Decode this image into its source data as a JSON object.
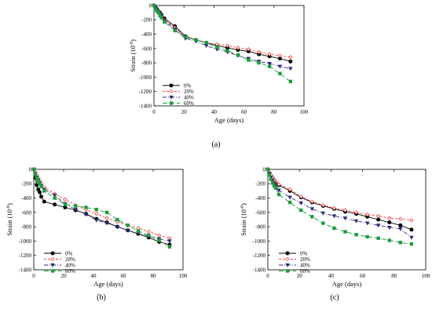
{
  "figure": {
    "panels": [
      "(a)",
      "(b)",
      "(c)"
    ]
  },
  "legend": [
    "0%",
    "20%",
    "40%",
    "60%"
  ],
  "styles": {
    "0%": {
      "color": "#000000",
      "marker": "circle",
      "filled": true,
      "dash": ""
    },
    "20%": {
      "color": "#e8433e",
      "marker": "diamond",
      "filled": false,
      "dash": "3,2"
    },
    "40%": {
      "color": "#2d2a7a",
      "marker": "triangle",
      "filled": true,
      "dash": "5,2,1,2"
    },
    "60%": {
      "color": "#1a9c3c",
      "marker": "square",
      "filled": true,
      "dash": "6,3"
    }
  },
  "chart_data": [
    {
      "panel": "(a)",
      "type": "line",
      "xlabel": "Age (days)",
      "ylabel_main": "Strain (10",
      "ylabel_sup": "-6",
      "ylabel_end": ")",
      "xlim": [
        0,
        100
      ],
      "ylim": [
        -1400,
        0
      ],
      "xticks": [
        0,
        20,
        40,
        60,
        80,
        100
      ],
      "yticks": [
        0,
        -200,
        -400,
        -600,
        -800,
        -1000,
        -1200,
        -1400
      ],
      "series": [
        {
          "name": "0%",
          "x": [
            0,
            1,
            2,
            3,
            4,
            5,
            7,
            14,
            21,
            28,
            35,
            42,
            49,
            56,
            63,
            70,
            77,
            84,
            91
          ],
          "y": [
            0,
            -30,
            -50,
            -80,
            -100,
            -130,
            -180,
            -290,
            -430,
            -480,
            -520,
            -560,
            -590,
            -620,
            -640,
            -680,
            -710,
            -740,
            -780
          ]
        },
        {
          "name": "20%",
          "x": [
            0,
            1,
            2,
            3,
            4,
            5,
            7,
            14,
            21,
            28,
            35,
            42,
            49,
            56,
            63,
            70,
            77,
            84,
            91
          ],
          "y": [
            0,
            -40,
            -60,
            -80,
            -110,
            -140,
            -200,
            -310,
            -440,
            -480,
            -520,
            -540,
            -560,
            -590,
            -610,
            -650,
            -680,
            -700,
            -720
          ]
        },
        {
          "name": "40%",
          "x": [
            0,
            1,
            2,
            3,
            4,
            5,
            7,
            14,
            21,
            28,
            35,
            42,
            49,
            56,
            63,
            70,
            77,
            84,
            91
          ],
          "y": [
            0,
            -40,
            -70,
            -90,
            -120,
            -150,
            -210,
            -330,
            -460,
            -500,
            -560,
            -610,
            -650,
            -700,
            -740,
            -780,
            -810,
            -850,
            -880
          ]
        },
        {
          "name": "60%",
          "x": [
            0,
            1,
            2,
            3,
            4,
            5,
            7,
            14,
            21,
            28,
            35,
            42,
            49,
            56,
            63,
            70,
            77,
            84,
            91
          ],
          "y": [
            0,
            -50,
            -80,
            -100,
            -140,
            -170,
            -230,
            -350,
            -440,
            -480,
            -520,
            -580,
            -630,
            -690,
            -760,
            -800,
            -850,
            -950,
            -1060
          ]
        }
      ]
    },
    {
      "panel": "(b)",
      "type": "line",
      "xlabel": "Age (days)",
      "ylabel_main": "Strain (10",
      "ylabel_sup": "-6",
      "ylabel_end": ")",
      "xlim": [
        0,
        100
      ],
      "ylim": [
        -1400,
        0
      ],
      "xticks": [
        0,
        20,
        40,
        60,
        80,
        100
      ],
      "yticks": [
        0,
        -200,
        -400,
        -600,
        -800,
        -1000,
        -1200,
        -1400
      ],
      "series": [
        {
          "name": "0%",
          "x": [
            0,
            1,
            2,
            3,
            4,
            5,
            7,
            14,
            21,
            28,
            35,
            42,
            49,
            56,
            63,
            70,
            77,
            84,
            91
          ],
          "y": [
            0,
            -120,
            -220,
            -280,
            -320,
            -380,
            -450,
            -490,
            -530,
            -570,
            -620,
            -690,
            -740,
            -800,
            -850,
            -900,
            -950,
            -1010,
            -1050
          ]
        },
        {
          "name": "20%",
          "x": [
            0,
            1,
            2,
            3,
            4,
            5,
            7,
            14,
            21,
            28,
            35,
            42,
            49,
            56,
            63,
            70,
            77,
            84,
            91
          ],
          "y": [
            0,
            -40,
            -80,
            -120,
            -160,
            -200,
            -250,
            -340,
            -420,
            -500,
            -560,
            -620,
            -680,
            -730,
            -780,
            -820,
            -870,
            -920,
            -960
          ]
        },
        {
          "name": "40%",
          "x": [
            0,
            1,
            2,
            3,
            4,
            5,
            7,
            14,
            21,
            28,
            35,
            42,
            49,
            56,
            63,
            70,
            77,
            84,
            91
          ],
          "y": [
            0,
            -60,
            -110,
            -150,
            -190,
            -230,
            -280,
            -360,
            -480,
            -560,
            -630,
            -710,
            -750,
            -800,
            -850,
            -890,
            -930,
            -970,
            -1000
          ]
        },
        {
          "name": "60%",
          "x": [
            0,
            1,
            2,
            3,
            4,
            5,
            7,
            14,
            21,
            28,
            35,
            42,
            49,
            56,
            63,
            70,
            77,
            84,
            91
          ],
          "y": [
            0,
            -70,
            -120,
            -160,
            -200,
            -240,
            -300,
            -400,
            -490,
            -510,
            -530,
            -560,
            -600,
            -700,
            -780,
            -860,
            -920,
            -990,
            -1080
          ]
        }
      ]
    },
    {
      "panel": "(c)",
      "type": "line",
      "xlabel": "Age (days)",
      "ylabel_main": "Strain (10",
      "ylabel_sup": "-6",
      "ylabel_end": ")",
      "xlim": [
        0,
        100
      ],
      "ylim": [
        -1400,
        0
      ],
      "xticks": [
        0,
        20,
        40,
        60,
        80,
        100
      ],
      "yticks": [
        0,
        -200,
        -400,
        -600,
        -800,
        -1000,
        -1200,
        -1400
      ],
      "series": [
        {
          "name": "0%",
          "x": [
            0,
            1,
            2,
            3,
            4,
            5,
            7,
            14,
            21,
            28,
            35,
            42,
            49,
            56,
            63,
            70,
            77,
            84,
            91
          ],
          "y": [
            0,
            -50,
            -90,
            -120,
            -150,
            -180,
            -220,
            -300,
            -390,
            -460,
            -510,
            -550,
            -590,
            -620,
            -660,
            -700,
            -740,
            -780,
            -840
          ]
        },
        {
          "name": "20%",
          "x": [
            0,
            1,
            2,
            3,
            4,
            5,
            7,
            14,
            21,
            28,
            35,
            42,
            49,
            56,
            63,
            70,
            77,
            84,
            91
          ],
          "y": [
            0,
            -40,
            -80,
            -110,
            -140,
            -170,
            -210,
            -280,
            -380,
            -450,
            -500,
            -540,
            -570,
            -600,
            -630,
            -650,
            -680,
            -690,
            -710
          ]
        },
        {
          "name": "40%",
          "x": [
            0,
            1,
            2,
            3,
            4,
            5,
            7,
            14,
            21,
            28,
            35,
            42,
            49,
            56,
            63,
            70,
            77,
            84,
            91
          ],
          "y": [
            0,
            -60,
            -110,
            -150,
            -190,
            -230,
            -290,
            -390,
            -470,
            -550,
            -610,
            -650,
            -680,
            -720,
            -750,
            -780,
            -810,
            -830,
            -950
          ]
        },
        {
          "name": "60%",
          "x": [
            0,
            1,
            2,
            3,
            4,
            5,
            7,
            14,
            21,
            28,
            35,
            42,
            49,
            56,
            63,
            70,
            77,
            84,
            91
          ],
          "y": [
            0,
            -80,
            -140,
            -190,
            -230,
            -260,
            -350,
            -460,
            -570,
            -660,
            -750,
            -820,
            -870,
            -910,
            -940,
            -960,
            -990,
            -1020,
            -1040
          ]
        }
      ]
    }
  ]
}
